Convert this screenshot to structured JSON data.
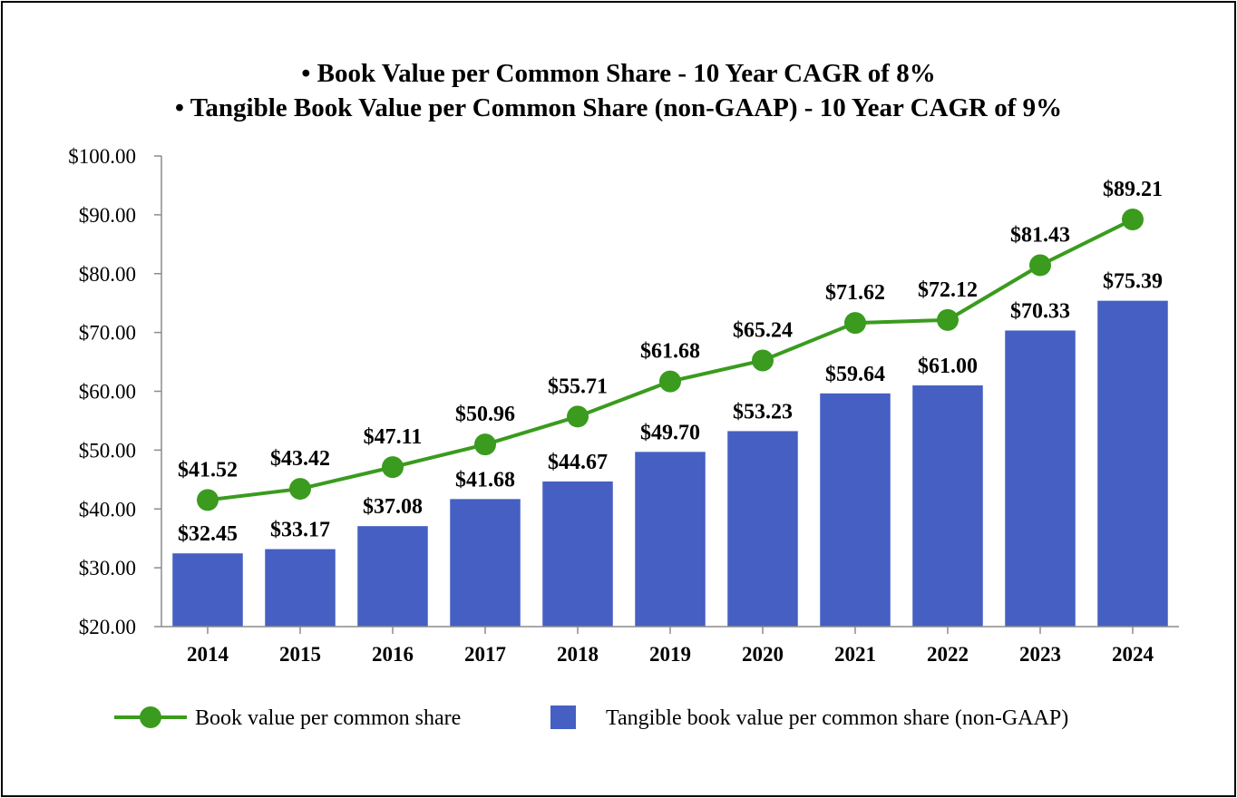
{
  "chart_data": {
    "type": "bar",
    "title_lines": [
      "• Book Value per Common Share - 10 Year CAGR of 8%",
      "• Tangible Book Value per Common Share (non-GAAP) - 10 Year CAGR of 9%"
    ],
    "categories": [
      "2014",
      "2015",
      "2016",
      "2017",
      "2018",
      "2019",
      "2020",
      "2021",
      "2022",
      "2023",
      "2024"
    ],
    "series": [
      {
        "name": "Tangible book value per common share (non-GAAP)",
        "type": "bar",
        "values": [
          32.45,
          33.17,
          37.08,
          41.68,
          44.67,
          49.7,
          53.23,
          59.64,
          61.0,
          70.33,
          75.39
        ],
        "labels": [
          "$32.45",
          "$33.17",
          "$37.08",
          "$41.68",
          "$44.67",
          "$49.70",
          "$53.23",
          "$59.64",
          "$61.00",
          "$70.33",
          "$75.39"
        ],
        "color": "#4560C2"
      },
      {
        "name": "Book value per common share",
        "type": "line",
        "values": [
          41.52,
          43.42,
          47.11,
          50.96,
          55.71,
          61.68,
          65.24,
          71.62,
          72.12,
          81.43,
          89.21
        ],
        "labels": [
          "$41.52",
          "$43.42",
          "$47.11",
          "$50.96",
          "$55.71",
          "$61.68",
          "$65.24",
          "$71.62",
          "$72.12",
          "$81.43",
          "$89.21"
        ],
        "color": "#3A9B1E"
      }
    ],
    "ylim": [
      20,
      100
    ],
    "yticks": [
      20,
      30,
      40,
      50,
      60,
      70,
      80,
      90,
      100
    ],
    "ytick_labels": [
      "$20.00",
      "$30.00",
      "$40.00",
      "$50.00",
      "$60.00",
      "$70.00",
      "$80.00",
      "$90.00",
      "$100.00"
    ],
    "grid": false,
    "legend_position": "bottom"
  }
}
